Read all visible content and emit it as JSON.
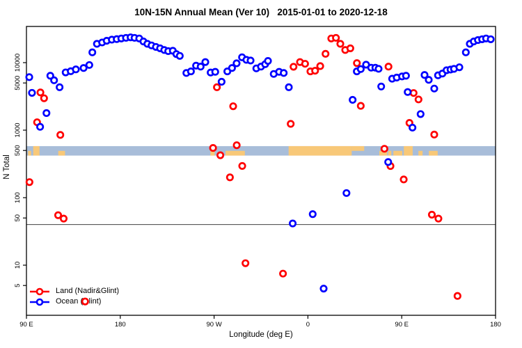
{
  "chart_data": {
    "type": "scatter",
    "title": "10N-15N Annual Mean (Ver 10)   2015-01-01 to 2020-12-18",
    "xlabel": "Longitude (deg E)",
    "ylabel": "N Total",
    "x_unit": "longitude degrees east, wrapped axis spanning 90E..180..90W..0..90E..180",
    "x_range": [
      90,
      540
    ],
    "y_scale": "log",
    "ylim": [
      2,
      34000
    ],
    "x_ticks": [
      {
        "lon": 90,
        "label": "90 E"
      },
      {
        "lon": 180,
        "label": "180"
      },
      {
        "lon": 270,
        "label": "90 W"
      },
      {
        "lon": 360,
        "label": "0"
      },
      {
        "lon": 450,
        "label": "90 E"
      },
      {
        "lon": 540,
        "label": "180"
      }
    ],
    "y_ticks": [
      {
        "n": 10000,
        "label": "10000"
      },
      {
        "n": 5000,
        "label": "5000"
      },
      {
        "n": 1000,
        "label": "1000"
      },
      {
        "n": 500,
        "label": "500"
      },
      {
        "n": 100,
        "label": "100"
      },
      {
        "n": 50,
        "label": "50"
      },
      {
        "n": 10,
        "label": "10"
      },
      {
        "n": 5,
        "label": "5"
      }
    ],
    "ref_line_n": 40,
    "map_band": {
      "description": "world map strip of the 10N-15N latitude zone drawn across the plot",
      "top_n": 580,
      "bottom_n": 420,
      "ocean_color": "#a8bdd9",
      "land_color": "#f8c878",
      "land_patches": [
        {
          "from": 91.5,
          "to": 94.5,
          "part": "bottom"
        },
        {
          "from": 96.5,
          "to": 102.5,
          "part": "full"
        },
        {
          "from": 120.5,
          "to": 127.0,
          "part": "bottom"
        },
        {
          "from": 266.5,
          "to": 270.5,
          "part": "full"
        },
        {
          "from": 281.0,
          "to": 299.5,
          "part": "bottom"
        },
        {
          "from": 341.5,
          "to": 402.0,
          "part": "full"
        },
        {
          "from": 402.0,
          "to": 414.0,
          "part": "top"
        },
        {
          "from": 428.5,
          "to": 436.0,
          "part": "bottom"
        },
        {
          "from": 437.0,
          "to": 440.0,
          "part": "bottom"
        },
        {
          "from": 442.0,
          "to": 450.5,
          "part": "bottom"
        },
        {
          "from": 452.0,
          "to": 460.5,
          "part": "full"
        },
        {
          "from": 466.0,
          "to": 470.0,
          "part": "bottom"
        },
        {
          "from": 476.0,
          "to": 484.5,
          "part": "bottom"
        }
      ]
    },
    "legend": {
      "items": [
        {
          "label": "Land (Nadir&Glint)",
          "color": "#ff0000"
        },
        {
          "label": "Ocean (Glint)",
          "color": "#0000ff"
        }
      ]
    },
    "series": [
      {
        "name": "Land (Nadir&Glint)",
        "color": "#ff0000",
        "points": [
          [
            92.9,
            170
          ],
          [
            100.2,
            1310
          ],
          [
            103.4,
            3620
          ],
          [
            106.9,
            2970
          ],
          [
            120.4,
            55
          ],
          [
            122.5,
            850
          ],
          [
            125.7,
            49
          ],
          [
            146.3,
            2.9
          ],
          [
            269.0,
            545
          ],
          [
            272.7,
            4320
          ],
          [
            276.0,
            425
          ],
          [
            285.2,
            200
          ],
          [
            288.3,
            2260
          ],
          [
            291.7,
            598
          ],
          [
            297.0,
            295
          ],
          [
            300.1,
            10.7
          ],
          [
            336.1,
            7.5
          ],
          [
            343.5,
            1240
          ],
          [
            346.2,
            8690
          ],
          [
            352.4,
            10200
          ],
          [
            357.3,
            9620
          ],
          [
            362.4,
            7420
          ],
          [
            366.9,
            7590
          ],
          [
            371.8,
            8890
          ],
          [
            376.9,
            13500
          ],
          [
            382.4,
            22800
          ],
          [
            386.9,
            23300
          ],
          [
            391.1,
            19000
          ],
          [
            395.8,
            15400
          ],
          [
            400.7,
            16300
          ],
          [
            407.0,
            9840
          ],
          [
            410.7,
            2290
          ],
          [
            433.4,
            530
          ],
          [
            437.3,
            8730
          ],
          [
            439.2,
            294
          ],
          [
            451.9,
            186
          ],
          [
            457.4,
            1280
          ],
          [
            461.4,
            3550
          ],
          [
            466.1,
            2850
          ],
          [
            478.9,
            56
          ],
          [
            481.2,
            860
          ],
          [
            485.2,
            49
          ],
          [
            503.5,
            3.5
          ]
        ]
      },
      {
        "name": "Ocean (Glint)",
        "color": "#0000ff",
        "points": [
          [
            92.7,
            6100
          ],
          [
            95.3,
            3570
          ],
          [
            103.1,
            1120
          ],
          [
            109.2,
            1790
          ],
          [
            112.9,
            6400
          ],
          [
            116.5,
            5480
          ],
          [
            121.8,
            4320
          ],
          [
            127.6,
            7170
          ],
          [
            132.5,
            7460
          ],
          [
            137.4,
            7940
          ],
          [
            144.8,
            8330
          ],
          [
            150.3,
            9230
          ],
          [
            153.2,
            14200
          ],
          [
            157.6,
            19000
          ],
          [
            162.6,
            19900
          ],
          [
            167.0,
            21100
          ],
          [
            171.9,
            21900
          ],
          [
            176.6,
            22300
          ],
          [
            181.0,
            22800
          ],
          [
            185.5,
            23300
          ],
          [
            189.9,
            23700
          ],
          [
            193.7,
            23300
          ],
          [
            198.2,
            22800
          ],
          [
            202.2,
            20600
          ],
          [
            206.0,
            19000
          ],
          [
            210.0,
            18000
          ],
          [
            214.2,
            17100
          ],
          [
            218.2,
            16300
          ],
          [
            222.2,
            15400
          ],
          [
            226.0,
            14800
          ],
          [
            230.4,
            15000
          ],
          [
            233.8,
            13400
          ],
          [
            237.1,
            12600
          ],
          [
            243.4,
            7030
          ],
          [
            247.8,
            7420
          ],
          [
            252.7,
            9030
          ],
          [
            257.1,
            8730
          ],
          [
            261.6,
            10200
          ],
          [
            266.7,
            7140
          ],
          [
            271.1,
            7310
          ],
          [
            277.2,
            5210
          ],
          [
            282.7,
            7420
          ],
          [
            287.2,
            8330
          ],
          [
            291.6,
            9770
          ],
          [
            296.8,
            12000
          ],
          [
            301.0,
            11000
          ],
          [
            305.0,
            10750
          ],
          [
            310.5,
            8220
          ],
          [
            315.0,
            8730
          ],
          [
            319.0,
            9480
          ],
          [
            321.7,
            10600
          ],
          [
            327.2,
            6800
          ],
          [
            332.4,
            7310
          ],
          [
            336.8,
            7030
          ],
          [
            341.7,
            4320
          ],
          [
            345.4,
            41.5
          ],
          [
            364.6,
            57
          ],
          [
            375.1,
            4.5
          ],
          [
            397.0,
            117
          ],
          [
            402.9,
            2810
          ],
          [
            406.9,
            7420
          ],
          [
            410.7,
            8030
          ],
          [
            415.8,
            9330
          ],
          [
            420.7,
            8420
          ],
          [
            424.7,
            8420
          ],
          [
            427.8,
            8100
          ],
          [
            430.3,
            4430
          ],
          [
            437.0,
            337
          ],
          [
            440.8,
            5780
          ],
          [
            445.2,
            6010
          ],
          [
            450.3,
            6250
          ],
          [
            454.1,
            6400
          ],
          [
            455.7,
            3670
          ],
          [
            460.3,
            1090
          ],
          [
            468.1,
            1730
          ],
          [
            471.9,
            6570
          ],
          [
            475.9,
            5560
          ],
          [
            481.2,
            4130
          ],
          [
            484.8,
            6490
          ],
          [
            489.0,
            6890
          ],
          [
            493.0,
            7720
          ],
          [
            496.8,
            7900
          ],
          [
            500.1,
            8090
          ],
          [
            505.3,
            8540
          ],
          [
            511.5,
            14200
          ],
          [
            515.3,
            19000
          ],
          [
            519.1,
            20600
          ],
          [
            523.1,
            21600
          ],
          [
            527.1,
            22200
          ],
          [
            530.9,
            22800
          ],
          [
            535.4,
            22200
          ]
        ]
      }
    ],
    "frame_color": "#000000",
    "ref_line_color": "#404040"
  }
}
